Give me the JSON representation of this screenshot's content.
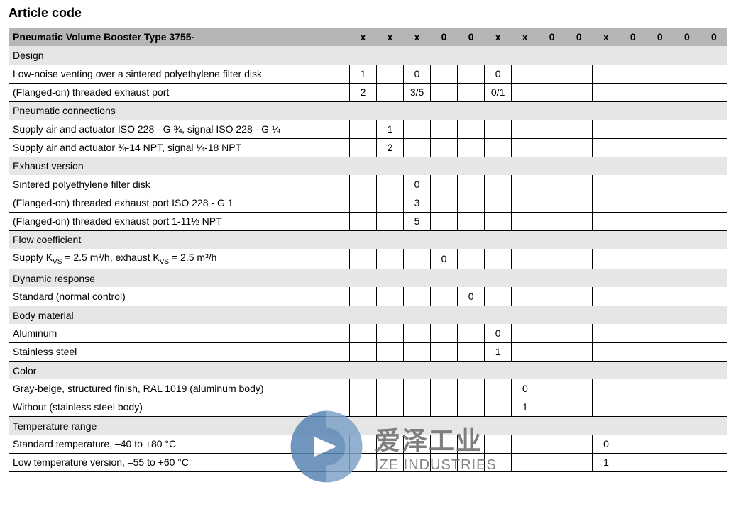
{
  "title": "Article code",
  "header": {
    "label": "Pneumatic Volume Booster Type 3755-",
    "codes": [
      "x",
      "x",
      "x",
      "0",
      "0",
      "x",
      "x",
      "0",
      "0",
      "x",
      "0",
      "0",
      "0",
      "0"
    ]
  },
  "sections": [
    {
      "name": "Design",
      "rows": [
        {
          "label": "Low-noise venting over a sintered polyethylene filter disk",
          "values": {
            "0": "1",
            "2": "0",
            "5": "0"
          }
        },
        {
          "label": "(Flanged-on) threaded exhaust port",
          "values": {
            "0": "2",
            "2": "3/5",
            "5": "0/1"
          }
        }
      ]
    },
    {
      "name": "Pneumatic connections",
      "rows": [
        {
          "label": "Supply air and actuator ISO 228 - G ¾, signal ISO 228 - G ¼",
          "values": {
            "1": "1"
          }
        },
        {
          "label": "Supply air and actuator ¾-14 NPT, signal ¼-18 NPT",
          "values": {
            "1": "2"
          }
        }
      ]
    },
    {
      "name": "Exhaust version",
      "rows": [
        {
          "label": "Sintered polyethylene filter disk",
          "values": {
            "2": "0"
          }
        },
        {
          "label": "(Flanged-on) threaded exhaust port ISO 228 - G 1",
          "values": {
            "2": "3"
          }
        },
        {
          "label": "(Flanged-on) threaded exhaust port 1-11½ NPT",
          "values": {
            "2": "5"
          }
        }
      ]
    },
    {
      "name": "Flow coefficient",
      "rows": [
        {
          "label_html": "Supply K<sub>VS</sub> = 2.5 m³/h, exhaust K<sub>VS</sub> = 2.5 m³/h",
          "values": {
            "3": "0"
          }
        }
      ]
    },
    {
      "name": "Dynamic response",
      "rows": [
        {
          "label": "Standard (normal control)",
          "values": {
            "4": "0"
          }
        }
      ]
    },
    {
      "name": "Body material",
      "rows": [
        {
          "label": "Aluminum",
          "values": {
            "5": "0"
          }
        },
        {
          "label": "Stainless steel",
          "values": {
            "5": "1"
          }
        }
      ]
    },
    {
      "name": "Color",
      "rows": [
        {
          "label": "Gray-beige, structured finish, RAL 1019 (aluminum body)",
          "values": {
            "6": "0"
          }
        },
        {
          "label": "Without (stainless steel body)",
          "values": {
            "6": "1"
          }
        }
      ]
    },
    {
      "name": "Temperature range",
      "rows": [
        {
          "label": "Standard temperature, –40 to +80 °C",
          "values": {
            "9": "0"
          }
        },
        {
          "label": "Low temperature version, –55 to +60 °C",
          "values": {
            "9": "1"
          }
        }
      ]
    }
  ],
  "border_columns": {
    "row_borders": {
      "default": [
        1,
        2,
        3,
        4,
        5,
        6,
        7,
        10
      ]
    }
  },
  "watermark": {
    "cn": "爱泽工业",
    "en": "IZE INDUSTRIES",
    "color": "#5a86b5"
  }
}
